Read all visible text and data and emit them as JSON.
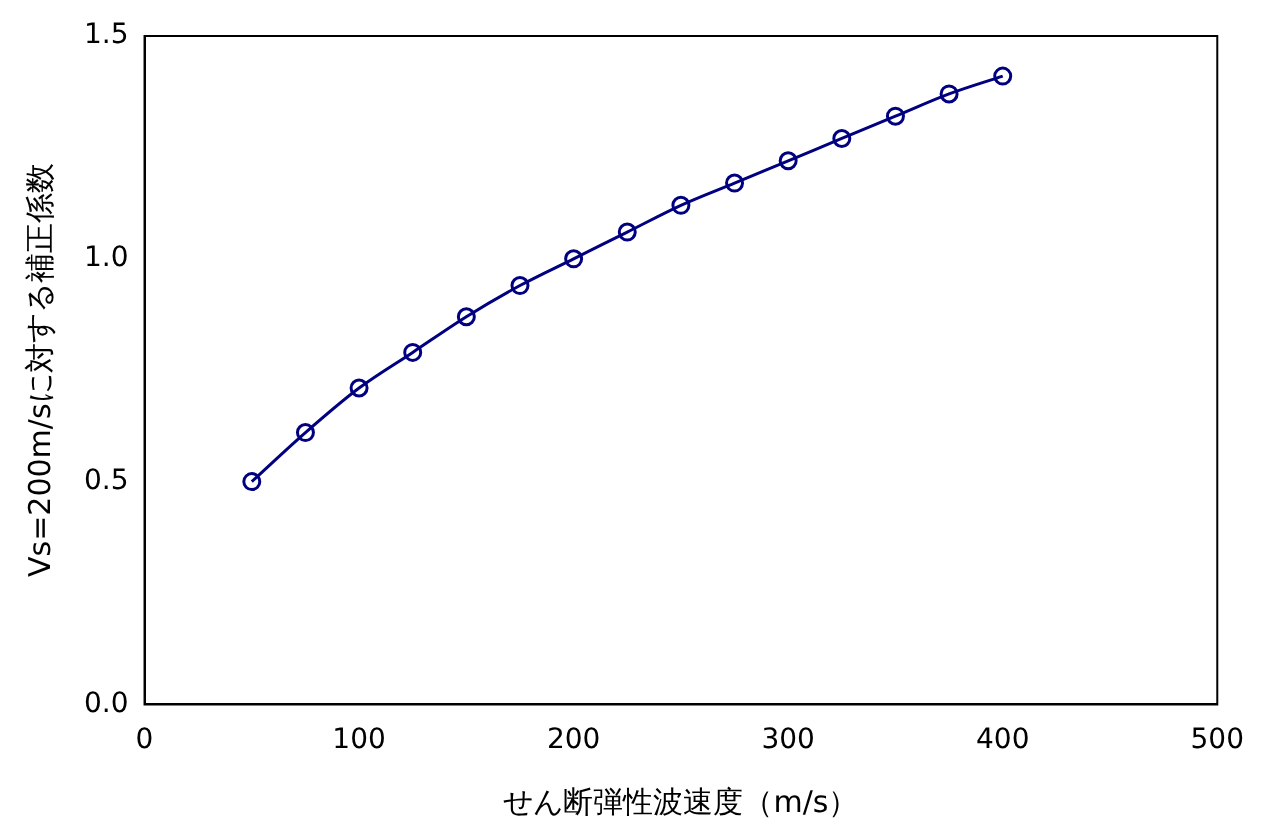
{
  "chart_data": {
    "type": "line",
    "xlabel": "せん断弾性波速度（m/s）",
    "ylabel": "Vs=200m/sに対する補正係数",
    "x": [
      50,
      75,
      100,
      125,
      150,
      175,
      200,
      225,
      250,
      275,
      300,
      325,
      350,
      375,
      400
    ],
    "series": [
      {
        "color": "#000080",
        "values": [
          0.5,
          0.61,
          0.71,
          0.79,
          0.87,
          0.94,
          1.0,
          1.06,
          1.12,
          1.17,
          1.22,
          1.27,
          1.32,
          1.37,
          1.41
        ]
      }
    ],
    "xlim": [
      0,
      500
    ],
    "xticks": [
      0,
      100,
      200,
      300,
      400,
      500
    ],
    "ylim": [
      0,
      1.5
    ],
    "yticks": [
      {
        "value": 0,
        "label": "0.0"
      },
      {
        "value": 0.5,
        "label": "0.5"
      },
      {
        "value": 1,
        "label": "1.0"
      },
      {
        "value": 1.5,
        "label": "1.5"
      }
    ],
    "grid": false,
    "legend": false,
    "marker": "circle",
    "line_style": "solid"
  }
}
